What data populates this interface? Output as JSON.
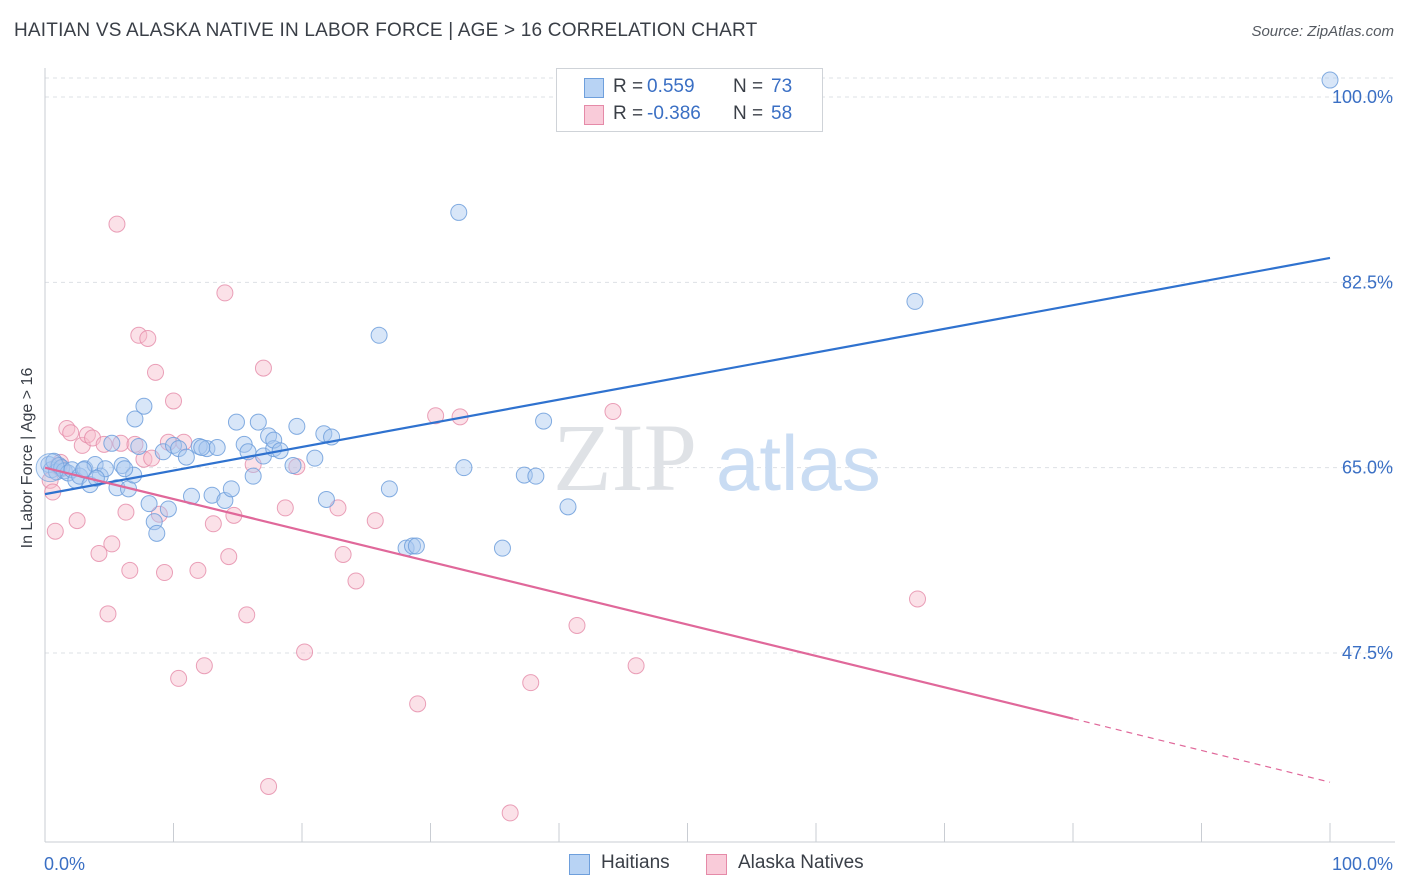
{
  "title": "HAITIAN VS ALASKA NATIVE IN LABOR FORCE | AGE > 16 CORRELATION CHART",
  "source": "Source: ZipAtlas.com",
  "watermark": {
    "zip": "ZIP",
    "atlas": "atlas"
  },
  "colors": {
    "haitians_fill": "#a9c8f0",
    "haitians_stroke": "#6e9fdc",
    "haitians_line": "#2f72cf",
    "alaska_fill": "#f6bccd",
    "alaska_stroke": "#e58aa8",
    "alaska_line": "#e0689a",
    "tick_text": "#3a6fc4",
    "grid": "#dde0e5"
  },
  "legend": {
    "haitians": {
      "r_label": "R =",
      "r_value": " 0.559",
      "n_label": "N =",
      "n_value": "73"
    },
    "alaska": {
      "r_label": "R =",
      "r_value": "-0.386",
      "n_label": "N =",
      "n_value": "58"
    }
  },
  "chart_data": {
    "type": "scatter",
    "title": "HAITIAN VS ALASKA NATIVE IN LABOR FORCE | AGE > 16 CORRELATION CHART",
    "xlabel": "",
    "ylabel": "In Labor Force | Age > 16",
    "xlim": [
      0,
      100
    ],
    "ylim": [
      32.5,
      102
    ],
    "x_tick_labels": [
      "0.0%",
      "100.0%"
    ],
    "y_ticks": [
      47.5,
      65.0,
      82.5,
      100.0
    ],
    "y_tick_labels": [
      "47.5%",
      "65.0%",
      "82.5%",
      "100.0%"
    ],
    "grid": true,
    "legend_position": "top-center",
    "series": [
      {
        "name": "Haitians",
        "trend": {
          "x": [
            0,
            100
          ],
          "y": [
            62.5,
            84.8
          ],
          "dashed_from": null
        },
        "points": [
          [
            0.3,
            65.3
          ],
          [
            0.5,
            64.8
          ],
          [
            0.7,
            65.6
          ],
          [
            0.9,
            64.6
          ],
          [
            1.1,
            65.2
          ],
          [
            1.3,
            65.0
          ],
          [
            1.5,
            64.7
          ],
          [
            1.8,
            64.5
          ],
          [
            2.1,
            64.8
          ],
          [
            2.4,
            63.8
          ],
          [
            2.7,
            64.2
          ],
          [
            3.1,
            64.9
          ],
          [
            3.5,
            63.4
          ],
          [
            3.9,
            65.3
          ],
          [
            4.3,
            64.2
          ],
          [
            4.7,
            64.9
          ],
          [
            5.2,
            67.3
          ],
          [
            5.6,
            63.1
          ],
          [
            6.0,
            65.2
          ],
          [
            6.5,
            63.0
          ],
          [
            6.9,
            64.3
          ],
          [
            7.3,
            67.0
          ],
          [
            7.7,
            70.8
          ],
          [
            8.1,
            61.6
          ],
          [
            8.5,
            59.9
          ],
          [
            8.7,
            58.8
          ],
          [
            7.0,
            69.6
          ],
          [
            9.2,
            66.5
          ],
          [
            9.6,
            61.1
          ],
          [
            10.0,
            67.1
          ],
          [
            10.4,
            66.8
          ],
          [
            11.0,
            66.0
          ],
          [
            11.4,
            62.3
          ],
          [
            12.0,
            67.0
          ],
          [
            12.6,
            66.8
          ],
          [
            13.0,
            62.4
          ],
          [
            13.4,
            66.9
          ],
          [
            14.0,
            61.9
          ],
          [
            14.5,
            63.0
          ],
          [
            14.9,
            69.3
          ],
          [
            15.5,
            67.2
          ],
          [
            15.8,
            66.5
          ],
          [
            16.2,
            64.2
          ],
          [
            16.6,
            69.3
          ],
          [
            17.0,
            66.1
          ],
          [
            17.4,
            68.0
          ],
          [
            17.8,
            66.8
          ],
          [
            17.8,
            67.6
          ],
          [
            18.3,
            66.6
          ],
          [
            19.3,
            65.2
          ],
          [
            19.6,
            68.9
          ],
          [
            21.0,
            65.9
          ],
          [
            21.9,
            62.0
          ],
          [
            21.7,
            68.2
          ],
          [
            22.3,
            67.9
          ],
          [
            26.0,
            77.5
          ],
          [
            26.8,
            63.0
          ],
          [
            28.1,
            57.4
          ],
          [
            28.6,
            57.6
          ],
          [
            28.9,
            57.6
          ],
          [
            32.2,
            89.1
          ],
          [
            32.6,
            65.0
          ],
          [
            35.6,
            57.4
          ],
          [
            37.3,
            64.3
          ],
          [
            38.2,
            64.2
          ],
          [
            38.8,
            69.4
          ],
          [
            40.7,
            61.3
          ],
          [
            67.7,
            80.7
          ],
          [
            100.0,
            101.6
          ],
          [
            3.0,
            64.8
          ],
          [
            4.0,
            64.0
          ],
          [
            6.2,
            64.9
          ],
          [
            12.2,
            66.9
          ]
        ]
      },
      {
        "name": "Alaska Natives",
        "trend": {
          "x": [
            0,
            80
          ],
          "y": [
            65.0,
            41.3
          ],
          "dashed_to": [
            100,
            35.3
          ]
        },
        "points": [
          [
            0.4,
            63.8
          ],
          [
            0.6,
            62.7
          ],
          [
            0.8,
            59.0
          ],
          [
            1.0,
            65.2
          ],
          [
            1.3,
            64.9
          ],
          [
            1.7,
            68.7
          ],
          [
            2.0,
            68.3
          ],
          [
            2.5,
            60.0
          ],
          [
            2.9,
            67.1
          ],
          [
            3.3,
            68.1
          ],
          [
            3.7,
            67.8
          ],
          [
            4.2,
            56.9
          ],
          [
            4.6,
            67.2
          ],
          [
            4.9,
            51.2
          ],
          [
            5.2,
            57.8
          ],
          [
            5.6,
            88.0
          ],
          [
            5.9,
            67.3
          ],
          [
            6.3,
            60.8
          ],
          [
            6.6,
            55.3
          ],
          [
            7.0,
            67.2
          ],
          [
            7.3,
            77.5
          ],
          [
            7.7,
            65.8
          ],
          [
            8.0,
            77.2
          ],
          [
            8.3,
            65.9
          ],
          [
            8.6,
            74.0
          ],
          [
            8.9,
            60.6
          ],
          [
            9.3,
            55.1
          ],
          [
            9.6,
            67.4
          ],
          [
            10.0,
            71.3
          ],
          [
            10.4,
            45.1
          ],
          [
            10.8,
            67.4
          ],
          [
            11.9,
            55.3
          ],
          [
            12.4,
            46.3
          ],
          [
            13.1,
            59.7
          ],
          [
            14.0,
            81.5
          ],
          [
            14.3,
            56.6
          ],
          [
            14.7,
            60.5
          ],
          [
            15.7,
            51.1
          ],
          [
            17.0,
            74.4
          ],
          [
            17.4,
            34.9
          ],
          [
            18.7,
            61.2
          ],
          [
            19.6,
            65.1
          ],
          [
            20.2,
            47.6
          ],
          [
            22.8,
            61.2
          ],
          [
            23.2,
            56.8
          ],
          [
            24.2,
            54.3
          ],
          [
            25.7,
            60.0
          ],
          [
            29.0,
            42.7
          ],
          [
            30.4,
            69.9
          ],
          [
            32.3,
            69.8
          ],
          [
            36.2,
            32.4
          ],
          [
            37.8,
            44.7
          ],
          [
            41.4,
            50.1
          ],
          [
            44.2,
            70.3
          ],
          [
            46.0,
            46.3
          ],
          [
            67.9,
            52.6
          ],
          [
            1.2,
            65.5
          ],
          [
            16.2,
            65.3
          ]
        ]
      }
    ]
  }
}
